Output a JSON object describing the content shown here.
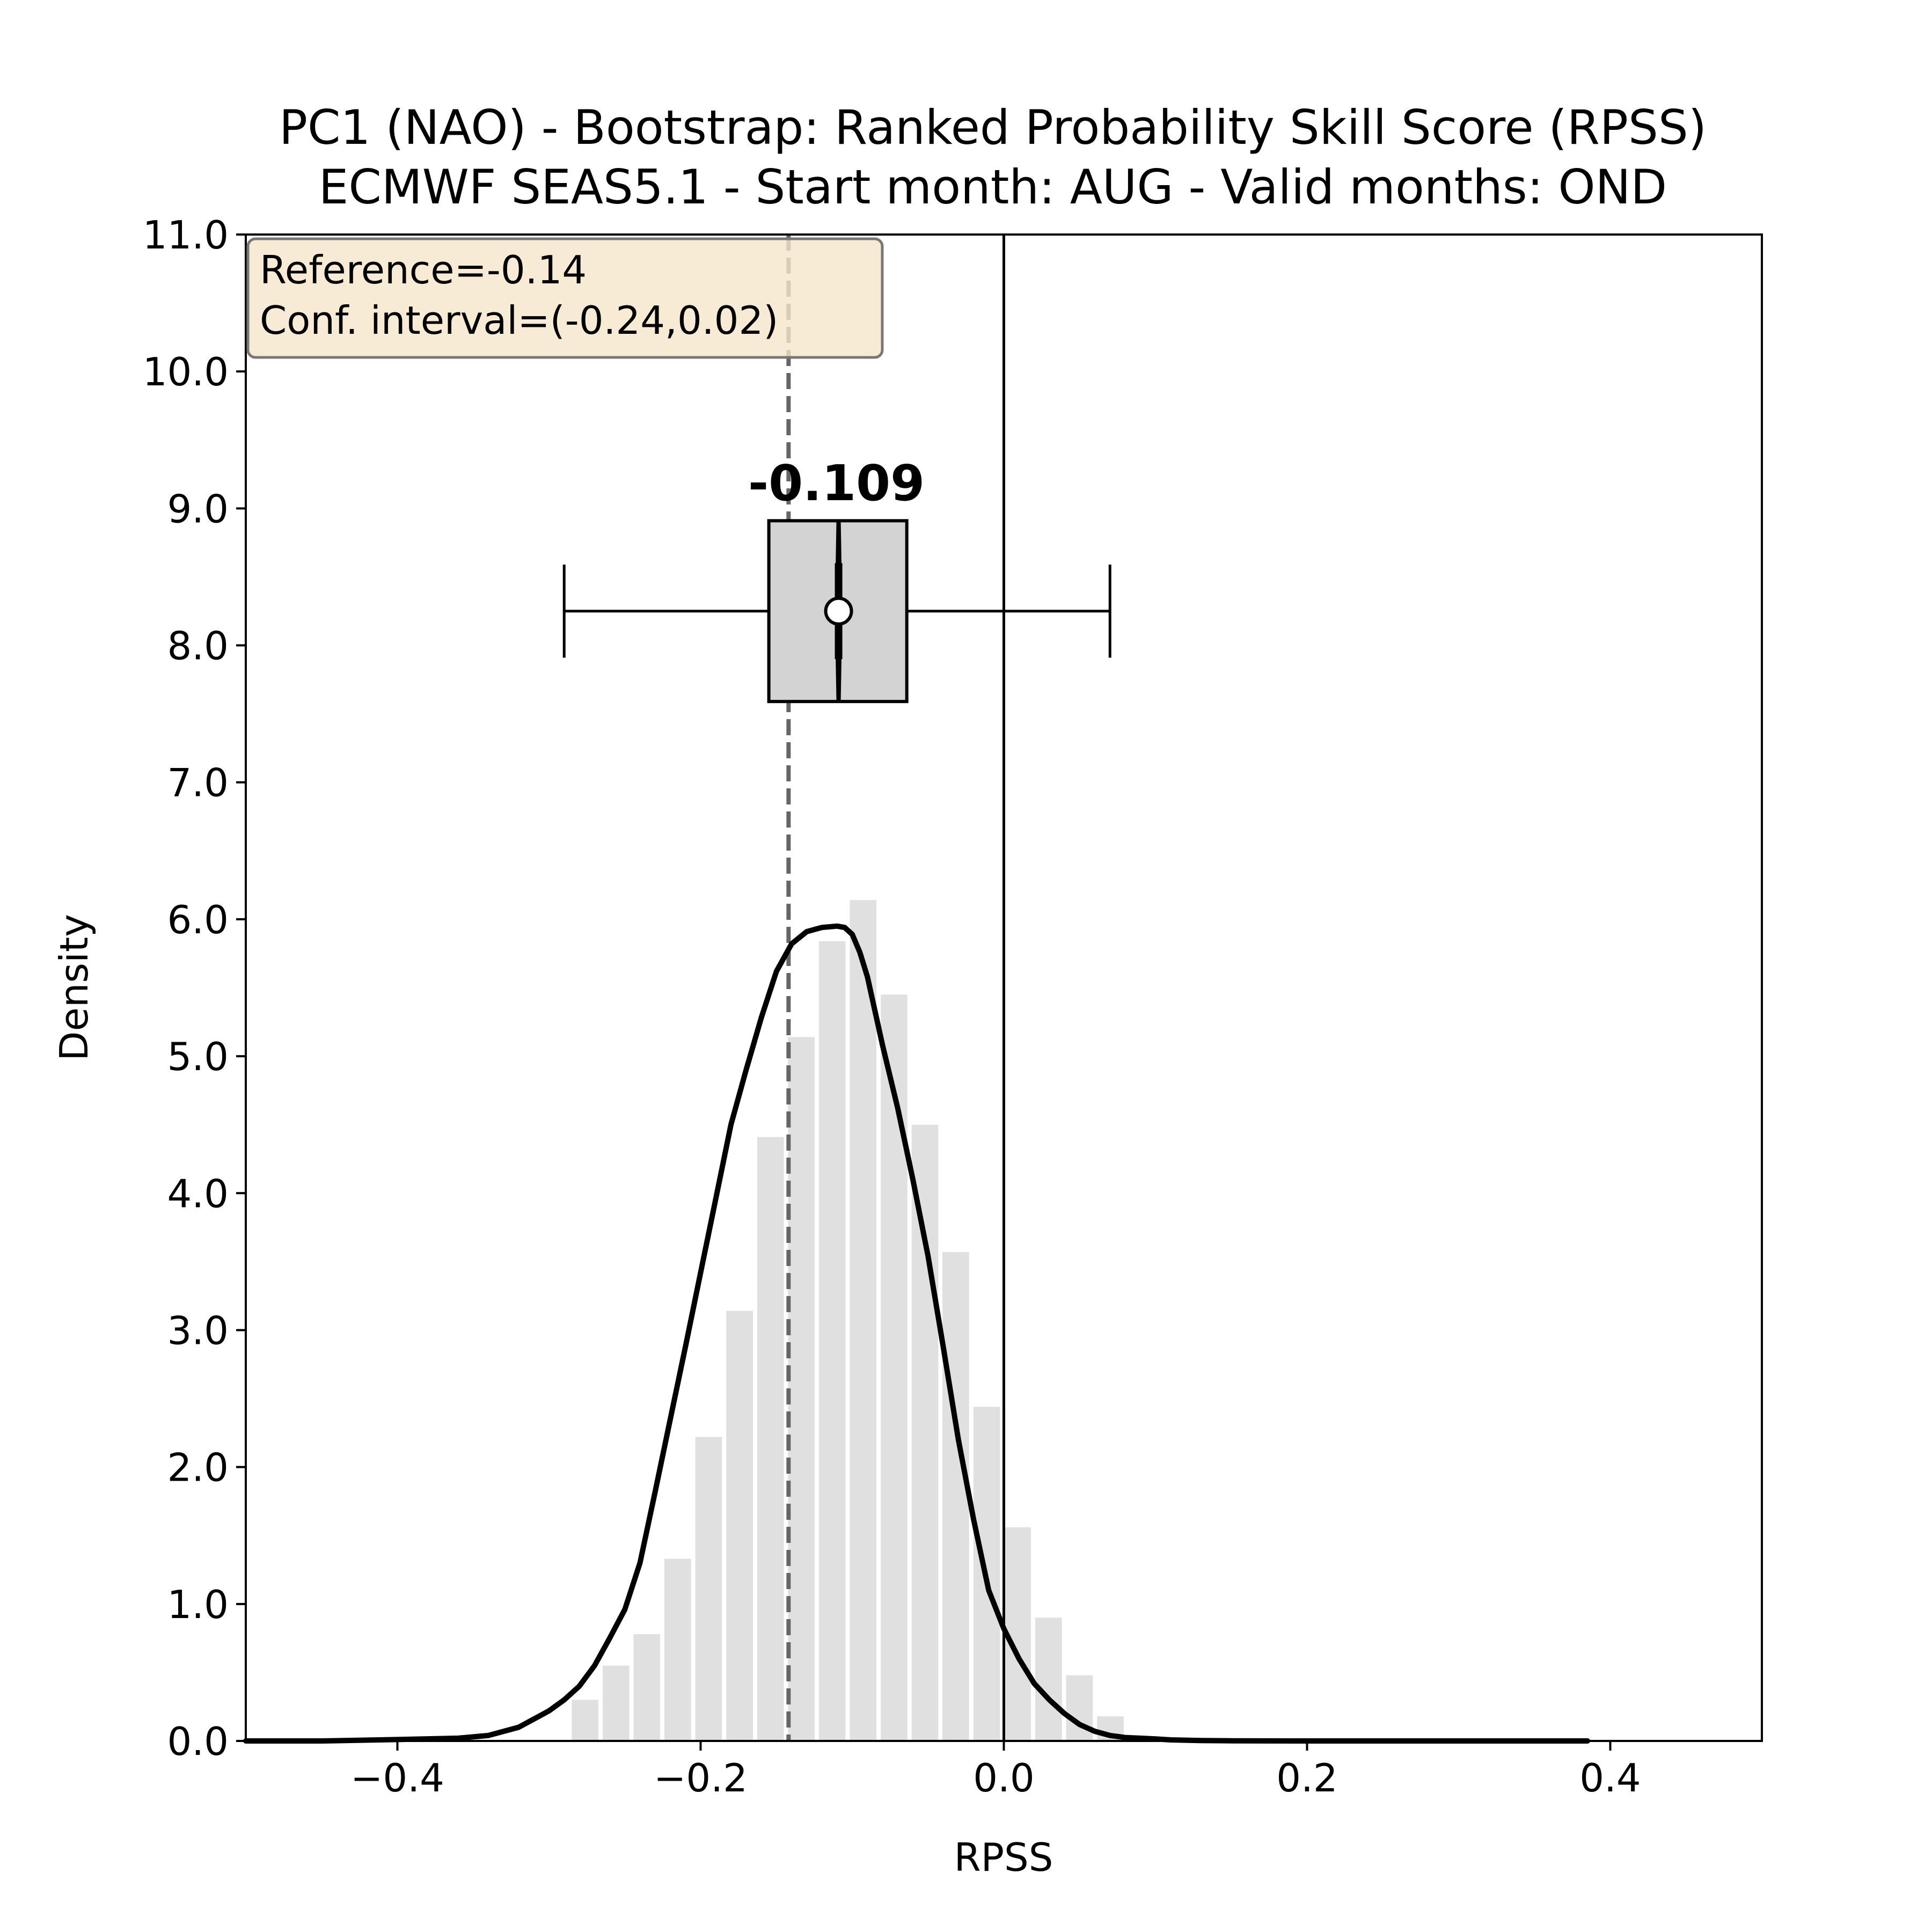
{
  "chart_data": {
    "type": "histogram",
    "title_line1": "PC1 (NAO) - Bootstrap: Ranked Probability Skill Score (RPSS)",
    "title_line2": "ECMWF SEAS5.1 - Start month: AUG - Valid months: OND",
    "xlabel": "RPSS",
    "ylabel": "Density",
    "xlim": [
      -0.5,
      0.5
    ],
    "ylim": [
      0,
      11
    ],
    "x_ticks": [
      -0.4,
      -0.2,
      0.0,
      0.2,
      0.4
    ],
    "x_tick_labels": [
      "−0.4",
      "−0.2",
      "0.0",
      "0.2",
      "0.4"
    ],
    "y_ticks": [
      0,
      1,
      2,
      3,
      4,
      5,
      6,
      7,
      8,
      9,
      10,
      11
    ],
    "y_tick_labels": [
      "0.0",
      "1.0",
      "2.0",
      "3.0",
      "4.0",
      "5.0",
      "6.0",
      "7.0",
      "8.0",
      "9.0",
      "10.0",
      "11.0"
    ],
    "grid": false,
    "histogram": {
      "bin_width": 0.0204,
      "bins": [
        {
          "x": -0.2762,
          "density": 0.3
        },
        {
          "x": -0.2558,
          "density": 0.55
        },
        {
          "x": -0.2355,
          "density": 0.78
        },
        {
          "x": -0.2151,
          "density": 1.33
        },
        {
          "x": -0.1947,
          "density": 2.22
        },
        {
          "x": -0.1743,
          "density": 3.14
        },
        {
          "x": -0.1539,
          "density": 4.41
        },
        {
          "x": -0.1336,
          "density": 5.14
        },
        {
          "x": -0.1132,
          "density": 5.84
        },
        {
          "x": -0.0928,
          "density": 6.14
        },
        {
          "x": -0.0724,
          "density": 5.45
        },
        {
          "x": -0.052,
          "density": 4.5
        },
        {
          "x": -0.0317,
          "density": 3.57
        },
        {
          "x": -0.0113,
          "density": 2.44
        },
        {
          "x": 0.0091,
          "density": 1.56
        },
        {
          "x": 0.0295,
          "density": 0.9
        },
        {
          "x": 0.0499,
          "density": 0.48
        },
        {
          "x": 0.0703,
          "density": 0.18
        }
      ]
    },
    "kde": {
      "x": [
        -0.5,
        -0.45,
        -0.4,
        -0.36,
        -0.34,
        -0.32,
        -0.31,
        -0.3,
        -0.29,
        -0.28,
        -0.27,
        -0.26,
        -0.25,
        -0.24,
        -0.23,
        -0.22,
        -0.21,
        -0.2,
        -0.19,
        -0.18,
        -0.17,
        -0.16,
        -0.15,
        -0.14,
        -0.13,
        -0.12,
        -0.11,
        -0.105,
        -0.1,
        -0.095,
        -0.09,
        -0.08,
        -0.07,
        -0.06,
        -0.05,
        -0.04,
        -0.03,
        -0.02,
        -0.01,
        0.0,
        0.01,
        0.02,
        0.03,
        0.04,
        0.05,
        0.06,
        0.07,
        0.08,
        0.09,
        0.1,
        0.11,
        0.13,
        0.15,
        0.2,
        0.3,
        0.385
      ],
      "y": [
        0.0,
        0.0,
        0.01,
        0.02,
        0.04,
        0.1,
        0.16,
        0.22,
        0.3,
        0.4,
        0.55,
        0.75,
        0.96,
        1.3,
        1.82,
        2.35,
        2.88,
        3.42,
        3.96,
        4.5,
        4.9,
        5.28,
        5.62,
        5.82,
        5.91,
        5.94,
        5.95,
        5.94,
        5.89,
        5.76,
        5.58,
        5.08,
        4.62,
        4.1,
        3.54,
        2.88,
        2.2,
        1.62,
        1.1,
        0.82,
        0.6,
        0.42,
        0.3,
        0.2,
        0.12,
        0.07,
        0.04,
        0.025,
        0.02,
        0.015,
        0.008,
        0.003,
        0.001,
        0.0,
        0.0,
        0.0
      ]
    },
    "reference_line": {
      "x": -0.142,
      "style": "dashed"
    },
    "zero_line": {
      "x": 0.0
    },
    "boxplot": {
      "y": 8.25,
      "whisker_low": -0.29,
      "q1": -0.155,
      "median": -0.109,
      "q3": -0.064,
      "whisker_high": 0.07,
      "mean": -0.109,
      "median_label": "-0.109"
    },
    "info_box": {
      "line1": "Reference=-0.14",
      "line2": "Conf. interval=(-0.24,0.02)",
      "placement": "top-left"
    },
    "colors": {
      "bars": "#e0e0e0",
      "kde": "#000000",
      "reference": "#666666",
      "box_fill": "#d3d3d3",
      "info_fill": "#f5e6cc"
    }
  }
}
